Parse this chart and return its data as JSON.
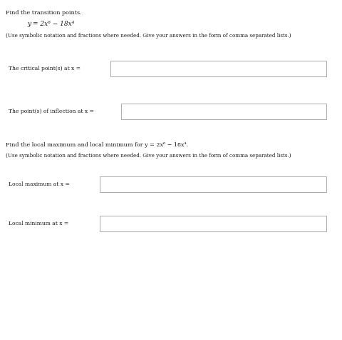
{
  "bg_color": "#ffffff",
  "title1": "Find the transition points.",
  "equation": "y = 2x⁶ − 18x⁴",
  "instruction1": "(Use symbolic notation and fractions where needed. Give your answers in the form of comma separated lists.)",
  "label_critical": "The critical point(s) at x =",
  "label_inflection": "The point(s) of inflection at x =",
  "title2": "Find the local maximum and local minimum for y = 2x⁶ − 18x⁴.",
  "instruction2": "(Use symbolic notation and fractions where needed. Give your answers in the form of comma separated lists.)",
  "label_max": "Local maximum at x =",
  "label_min": "Local minimum at x =",
  "font_size_title": 5.8,
  "font_size_eq": 6.5,
  "font_size_instr": 5.2,
  "font_size_label": 5.5,
  "text_color": "#1a1a1a",
  "box_edge_color": "#aaaaaa",
  "box_face_color": "#ffffff"
}
